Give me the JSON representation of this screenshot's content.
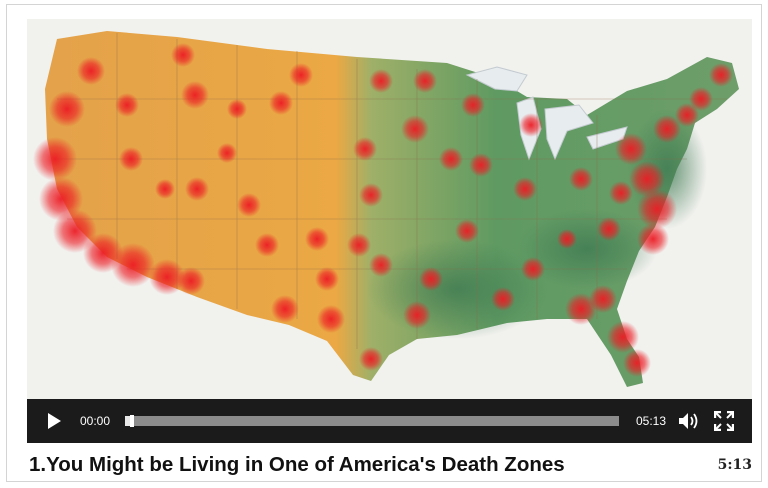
{
  "video": {
    "thumbnail_icon": "us-hotspot-map",
    "current_time": "00:00",
    "duration_time": "05:13",
    "progress_fraction": 0.01,
    "play_icon": "play-icon",
    "volume_icon": "volume-icon",
    "fullscreen_icon": "fullscreen-icon"
  },
  "caption": {
    "title": "1.You Might be Living in One of America's Death Zones",
    "duration": "5:13"
  },
  "colors": {
    "control_bar": "#1b1b1b",
    "west_terrain": "#e6a64a",
    "east_terrain": "#7fa86a",
    "hotspot": "#e8262a"
  }
}
